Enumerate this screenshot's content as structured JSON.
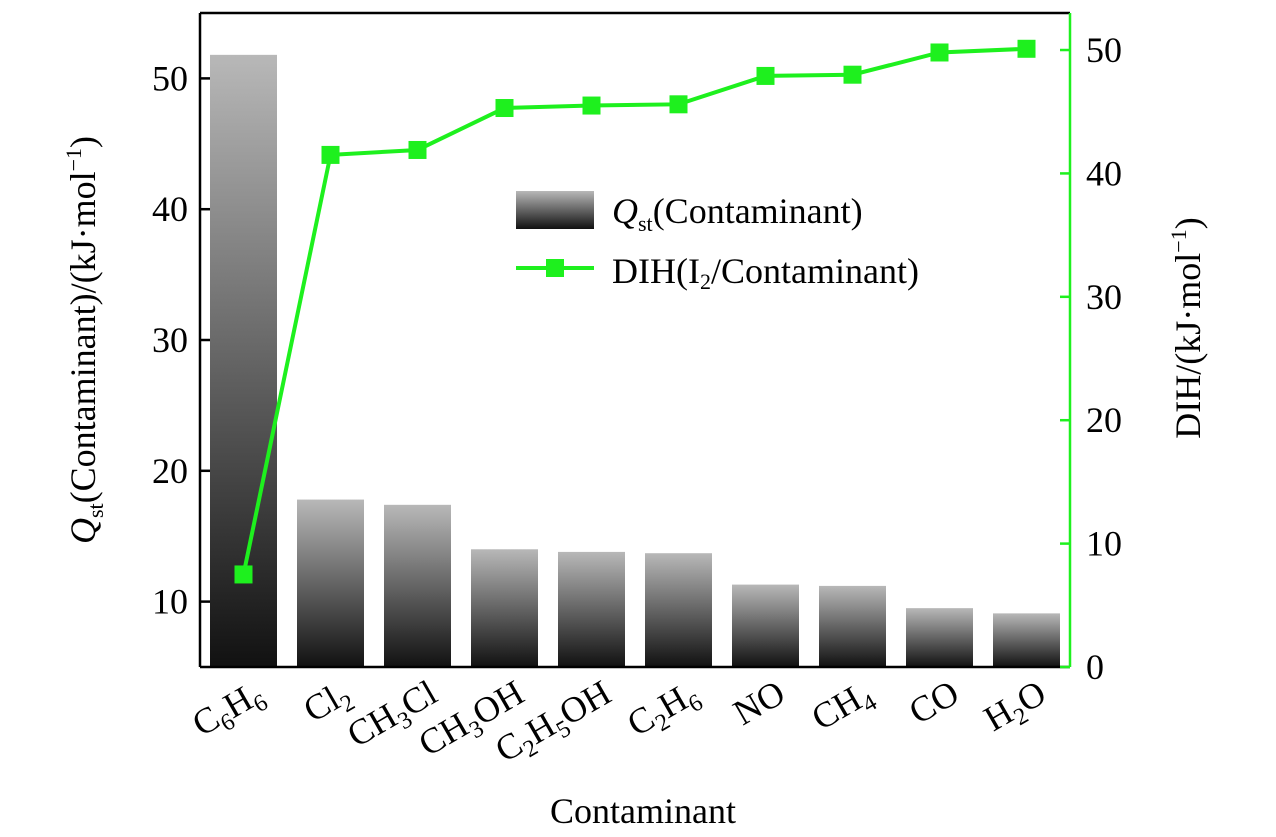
{
  "chart_data": {
    "type": "bar",
    "categories": [
      "C6H6",
      "Cl2",
      "CH3Cl",
      "CH3OH",
      "C2H5OH",
      "C2H6",
      "NO",
      "CH4",
      "CO",
      "H2O"
    ],
    "category_labels": [
      [
        [
          "C"
        ],
        [
          "6",
          "sub"
        ],
        [
          "H"
        ],
        [
          "6",
          "sub"
        ]
      ],
      [
        [
          "Cl"
        ],
        [
          "2",
          "sub"
        ]
      ],
      [
        [
          "CH"
        ],
        [
          "3",
          "sub"
        ],
        [
          "Cl"
        ]
      ],
      [
        [
          "CH"
        ],
        [
          "3",
          "sub"
        ],
        [
          "OH"
        ]
      ],
      [
        [
          "C"
        ],
        [
          "2",
          "sub"
        ],
        [
          "H"
        ],
        [
          "5",
          "sub"
        ],
        [
          "OH"
        ]
      ],
      [
        [
          "C"
        ],
        [
          "2",
          "sub"
        ],
        [
          "H"
        ],
        [
          "6",
          "sub"
        ]
      ],
      [
        [
          "NO"
        ]
      ],
      [
        [
          "CH"
        ],
        [
          "4",
          "sub"
        ]
      ],
      [
        [
          "CO"
        ]
      ],
      [
        [
          "H"
        ],
        [
          "2",
          "sub"
        ],
        [
          "O"
        ]
      ]
    ],
    "xlabel": "Contaminant",
    "ylabel_left": {
      "main": "Q",
      "sub": "st",
      "rest": "(Contaminant)/(kJ·mol",
      "sup": "−1",
      "end": ")"
    },
    "ylabel_right": {
      "rest": "DIH/(kJ·mol",
      "sup": "−1",
      "end": ")"
    },
    "ylim_left": [
      5,
      55
    ],
    "ylim_right": [
      0,
      53
    ],
    "yticks_left": [
      10,
      20,
      30,
      40,
      50
    ],
    "yticks_right": [
      0,
      10,
      20,
      30,
      40,
      50
    ],
    "series": [
      {
        "name": "Qst(Contaminant)",
        "kind": "bar",
        "axis": "left",
        "values": [
          51.8,
          17.8,
          17.4,
          14.0,
          13.8,
          13.7,
          11.3,
          11.2,
          9.5,
          9.1
        ]
      },
      {
        "name": "DIH(I2/Contaminant)",
        "kind": "line",
        "axis": "right",
        "color": "#1ef01e",
        "values": [
          7.5,
          41.5,
          41.9,
          45.3,
          45.5,
          45.6,
          47.9,
          48.0,
          49.8,
          50.1
        ]
      }
    ],
    "legend": {
      "position": "upper-center",
      "bar_label": {
        "main": "Q",
        "sub": "st",
        "rest": "(Contaminant)"
      },
      "line_label": {
        "pre": "DIH(I",
        "sub": "2",
        "rest": "/Contaminant)"
      }
    },
    "colors": {
      "bar_top": "#b8b8b8",
      "bar_bottom": "#111111",
      "line": "#1ef01e",
      "axis": "#000000"
    }
  }
}
